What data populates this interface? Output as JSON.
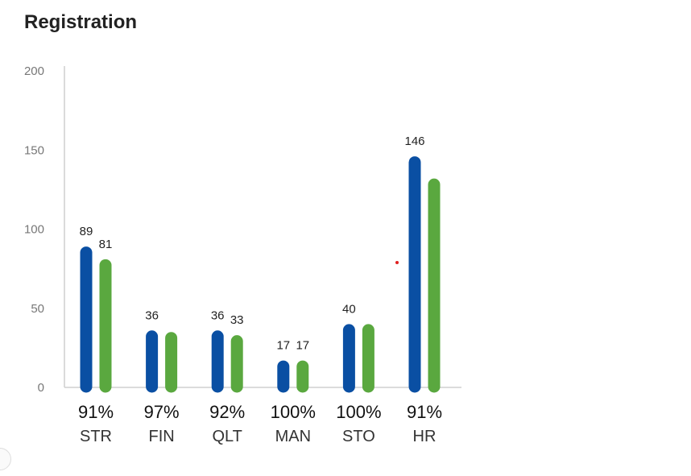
{
  "chart_data": {
    "type": "bar",
    "title": "Registration",
    "categories": [
      "STR",
      "FIN",
      "QLT",
      "MAN",
      "STO",
      "HR"
    ],
    "percentages": [
      "91%",
      "97%",
      "92%",
      "100%",
      "100%",
      "91%"
    ],
    "series": [
      {
        "name": "Series 1",
        "color": "#0a4fa3",
        "values": [
          89,
          36,
          36,
          17,
          40,
          146
        ],
        "labels": [
          "89",
          "36",
          "36",
          "17",
          "40",
          "146"
        ]
      },
      {
        "name": "Series 2",
        "color": "#5aa83f",
        "values": [
          81,
          35,
          33,
          17,
          40,
          132
        ],
        "labels": [
          "81",
          "",
          "33",
          "17",
          "",
          ""
        ]
      }
    ],
    "yticks": [
      "0",
      "50",
      "100",
      "150",
      "200"
    ],
    "ylim": [
      0,
      200
    ],
    "xlabel": "",
    "ylabel": "",
    "grid": false,
    "legend": "none"
  }
}
